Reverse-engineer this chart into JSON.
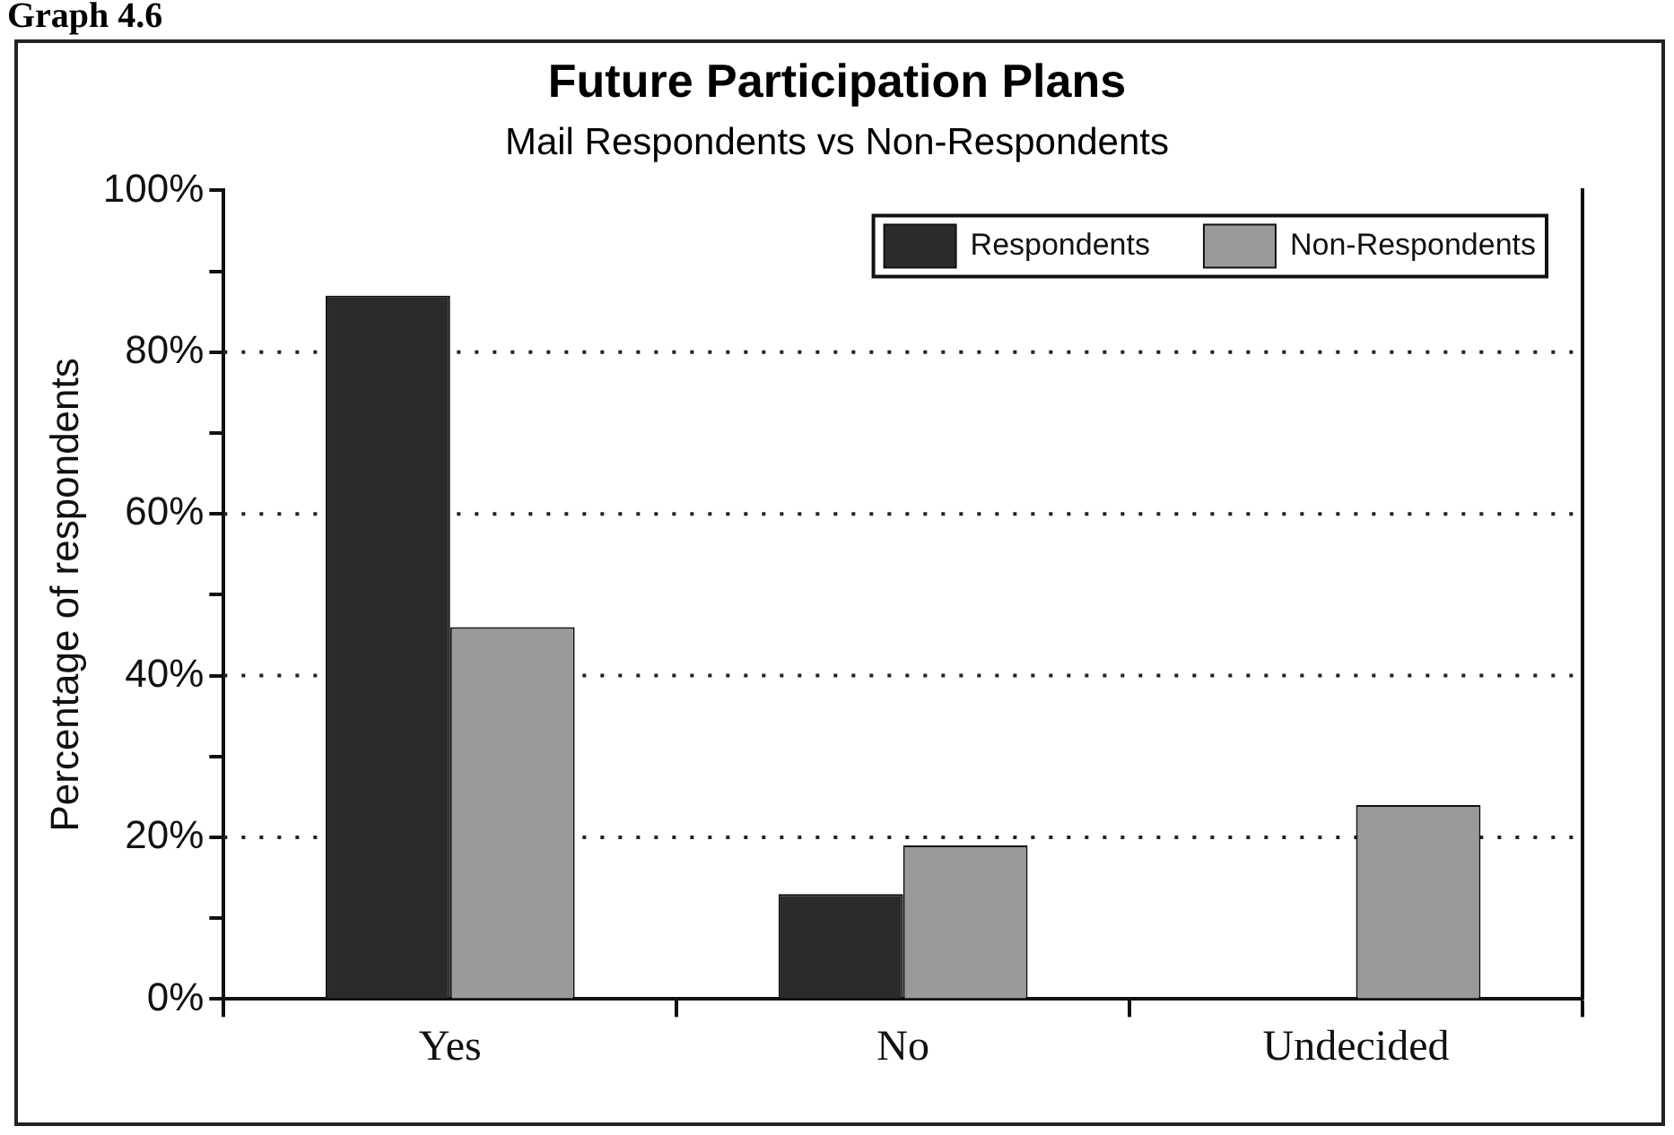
{
  "chart_data": {
    "type": "bar",
    "title": "Future Participation Plans",
    "subtitle": "Mail Respondents vs Non-Respondents",
    "ylabel": "Percentage of respondents",
    "annotations": [
      "Graph 4.6"
    ],
    "categories": [
      "Yes",
      "No",
      "Undecided"
    ],
    "series": [
      {
        "name": "Respondents",
        "color": "#2b2b2b",
        "values": [
          87,
          13,
          0
        ]
      },
      {
        "name": "Non-Respondents",
        "color": "#9a9a9a",
        "values": [
          46,
          19,
          24
        ]
      }
    ],
    "ylim": [
      0,
      100
    ],
    "yticks": [
      {
        "value": 0,
        "label": "0%"
      },
      {
        "value": 10,
        "label": null
      },
      {
        "value": 20,
        "label": "20%"
      },
      {
        "value": 30,
        "label": null
      },
      {
        "value": 40,
        "label": "40%"
      },
      {
        "value": 50,
        "label": null
      },
      {
        "value": 60,
        "label": "60%"
      },
      {
        "value": 70,
        "label": null
      },
      {
        "value": 80,
        "label": "80%"
      },
      {
        "value": 90,
        "label": null
      },
      {
        "value": 100,
        "label": "100%"
      }
    ],
    "grid": "y",
    "legend": "top right"
  }
}
